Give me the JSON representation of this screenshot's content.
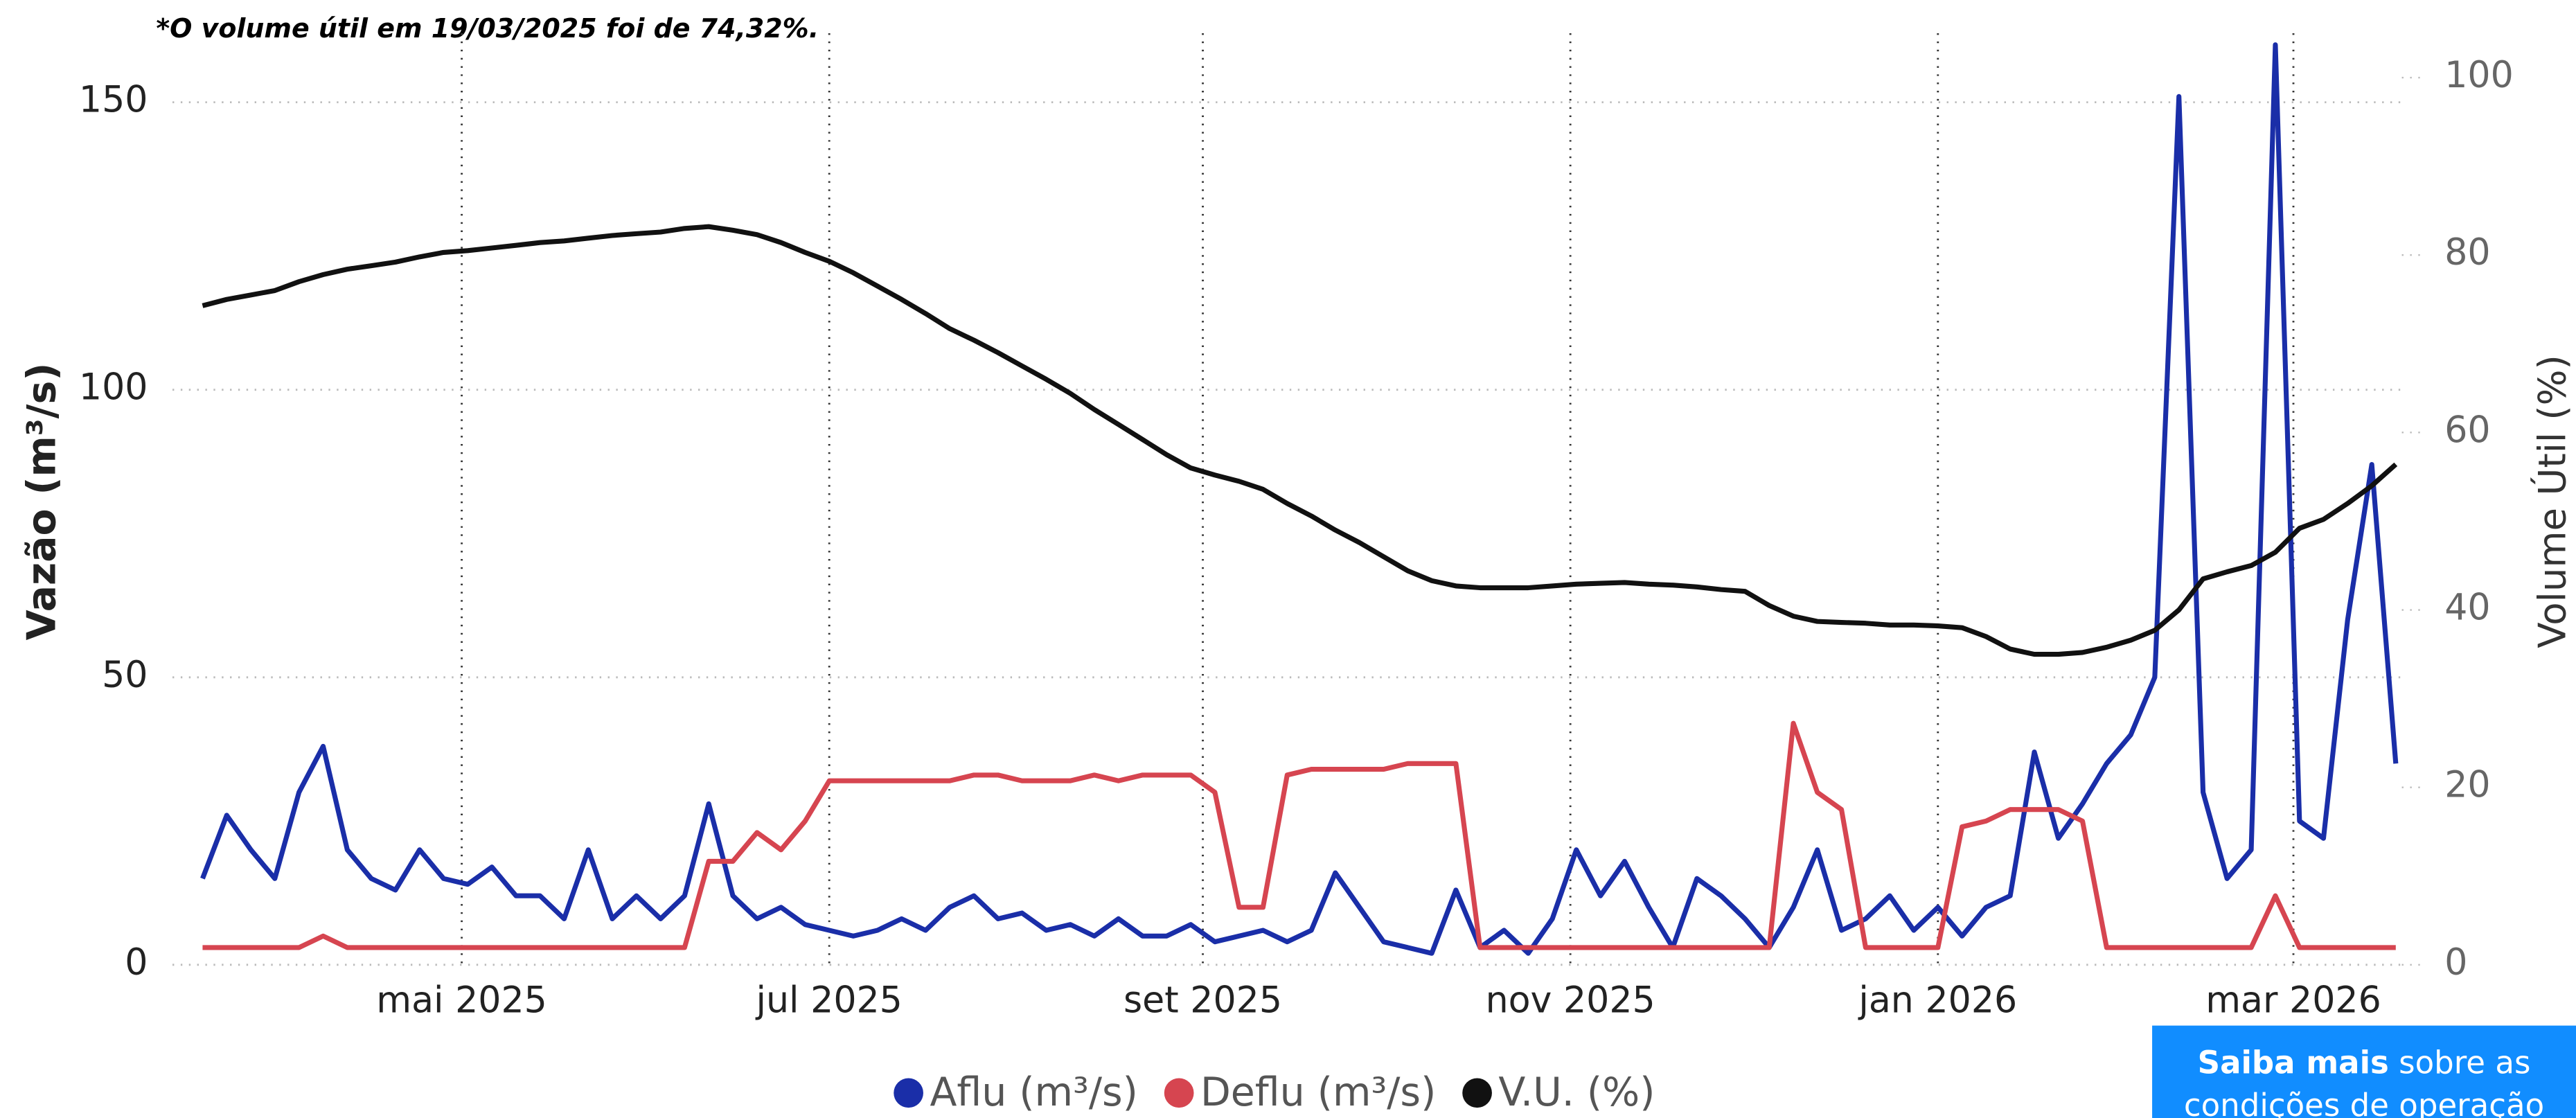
{
  "chart_data": {
    "type": "line",
    "note": "*O volume útil em 19/03/2025 foi de 74,32%.",
    "ylabel": "Vazão (m³/s)",
    "y2label": "Volume Útil (%)",
    "x": [
      "2025-03-19",
      "2025-03-23",
      "2025-03-27",
      "2025-03-31",
      "2025-04-04",
      "2025-04-08",
      "2025-04-12",
      "2025-04-16",
      "2025-04-20",
      "2025-04-24",
      "2025-04-28",
      "2025-05-02",
      "2025-05-06",
      "2025-05-10",
      "2025-05-14",
      "2025-05-18",
      "2025-05-22",
      "2025-05-26",
      "2025-05-30",
      "2025-06-03",
      "2025-06-07",
      "2025-06-11",
      "2025-06-15",
      "2025-06-19",
      "2025-06-23",
      "2025-06-27",
      "2025-07-01",
      "2025-07-05",
      "2025-07-09",
      "2025-07-13",
      "2025-07-17",
      "2025-07-21",
      "2025-07-25",
      "2025-07-29",
      "2025-08-02",
      "2025-08-06",
      "2025-08-10",
      "2025-08-14",
      "2025-08-18",
      "2025-08-22",
      "2025-08-26",
      "2025-08-30",
      "2025-09-03",
      "2025-09-07",
      "2025-09-11",
      "2025-09-15",
      "2025-09-19",
      "2025-09-23",
      "2025-09-27",
      "2025-10-01",
      "2025-10-05",
      "2025-10-09",
      "2025-10-13",
      "2025-10-17",
      "2025-10-21",
      "2025-10-25",
      "2025-10-29",
      "2025-11-02",
      "2025-11-06",
      "2025-11-10",
      "2025-11-14",
      "2025-11-18",
      "2025-11-22",
      "2025-11-26",
      "2025-11-30",
      "2025-12-04",
      "2025-12-08",
      "2025-12-12",
      "2025-12-16",
      "2025-12-20",
      "2025-12-24",
      "2025-12-28",
      "2026-01-01",
      "2026-01-05",
      "2026-01-09",
      "2026-01-13",
      "2026-01-17",
      "2026-01-21",
      "2026-01-25",
      "2026-01-29",
      "2026-02-02",
      "2026-02-06",
      "2026-02-10",
      "2026-02-14",
      "2026-02-18",
      "2026-02-22",
      "2026-02-26",
      "2026-03-02",
      "2026-03-06",
      "2026-03-10",
      "2026-03-14",
      "2026-03-18"
    ],
    "series": [
      {
        "name": "Aflu (m³/s)",
        "color": "#1a2ea8",
        "values": [
          15,
          26,
          20,
          15,
          30,
          38,
          20,
          15,
          13,
          20,
          15,
          14,
          17,
          12,
          12,
          8,
          20,
          8,
          12,
          8,
          12,
          28,
          12,
          8,
          10,
          7,
          6,
          5,
          6,
          8,
          6,
          10,
          12,
          8,
          9,
          6,
          7,
          5,
          8,
          5,
          5,
          7,
          4,
          5,
          6,
          4,
          6,
          16,
          10,
          4,
          3,
          2,
          13,
          3,
          6,
          2,
          8,
          20,
          12,
          18,
          10,
          3,
          15,
          12,
          8,
          3,
          10,
          20,
          6,
          8,
          12,
          6,
          10,
          5,
          10,
          12,
          37,
          22,
          28,
          35,
          40,
          50,
          151,
          30,
          15,
          20,
          160,
          25,
          22,
          60,
          87,
          35
        ]
      },
      {
        "name": "Deflu (m³/s)",
        "color": "#d64550",
        "values": [
          3,
          3,
          3,
          3,
          3,
          5,
          3,
          3,
          3,
          3,
          3,
          3,
          3,
          3,
          3,
          3,
          3,
          3,
          3,
          3,
          3,
          18,
          18,
          23,
          20,
          25,
          32,
          32,
          32,
          32,
          32,
          32,
          33,
          33,
          32,
          32,
          32,
          33,
          32,
          33,
          33,
          33,
          30,
          10,
          10,
          33,
          34,
          34,
          34,
          34,
          35,
          35,
          35,
          3,
          3,
          3,
          3,
          3,
          3,
          3,
          3,
          3,
          3,
          3,
          3,
          3,
          42,
          30,
          27,
          3,
          3,
          3,
          3,
          24,
          25,
          27,
          27,
          27,
          25,
          3,
          3,
          3,
          3,
          3,
          3,
          3,
          12,
          3,
          3,
          3,
          3,
          3
        ]
      },
      {
        "name": "V.U. (%)",
        "color": "#111111",
        "axis": "y2",
        "values": [
          74.3,
          75,
          75.5,
          76,
          77,
          77.8,
          78.4,
          78.8,
          79.2,
          79.8,
          80.3,
          80.5,
          80.8,
          81.1,
          81.4,
          81.6,
          81.9,
          82.2,
          82.4,
          82.6,
          83,
          83.2,
          82.8,
          82.3,
          81.4,
          80.3,
          79.3,
          78,
          76.5,
          75,
          73.4,
          71.7,
          70.4,
          69,
          67.5,
          66,
          64.4,
          62.6,
          60.9,
          59.2,
          57.5,
          56,
          55.2,
          54.5,
          53.6,
          52,
          50.6,
          49,
          47.6,
          46,
          44.4,
          43.3,
          42.7,
          42.5,
          42.5,
          42.5,
          42.7,
          42.9,
          43,
          43.1,
          42.9,
          42.8,
          42.6,
          42.3,
          42.1,
          40.5,
          39.3,
          38.7,
          38.6,
          38.5,
          38.3,
          38.3,
          38.2,
          38,
          37,
          35.6,
          35,
          35,
          35.2,
          35.8,
          36.6,
          37.7,
          40,
          43.5,
          44.3,
          45,
          46.5,
          49.2,
          50.2,
          52,
          54,
          56.4
        ]
      }
    ],
    "xlim": [
      "2025-03-14",
      "2026-03-19"
    ],
    "xticks": [
      {
        "value": "2025-05-01",
        "label": "mai 2025"
      },
      {
        "value": "2025-07-01",
        "label": "jul 2025"
      },
      {
        "value": "2025-09-01",
        "label": "set 2025"
      },
      {
        "value": "2025-11-01",
        "label": "nov 2025"
      },
      {
        "value": "2026-01-01",
        "label": "jan 2026"
      },
      {
        "value": "2026-03-01",
        "label": "mar 2026"
      }
    ],
    "ylim": [
      0,
      162
    ],
    "yticks": [
      0,
      50,
      100,
      150
    ],
    "y2lim": [
      0,
      105
    ],
    "y2ticks": [
      0,
      20,
      40,
      60,
      80,
      100
    ],
    "grid": true,
    "legend": "bottom"
  },
  "link": {
    "bold": "Saiba mais",
    "rest": "sobre as",
    "line2": "condições de operação"
  }
}
